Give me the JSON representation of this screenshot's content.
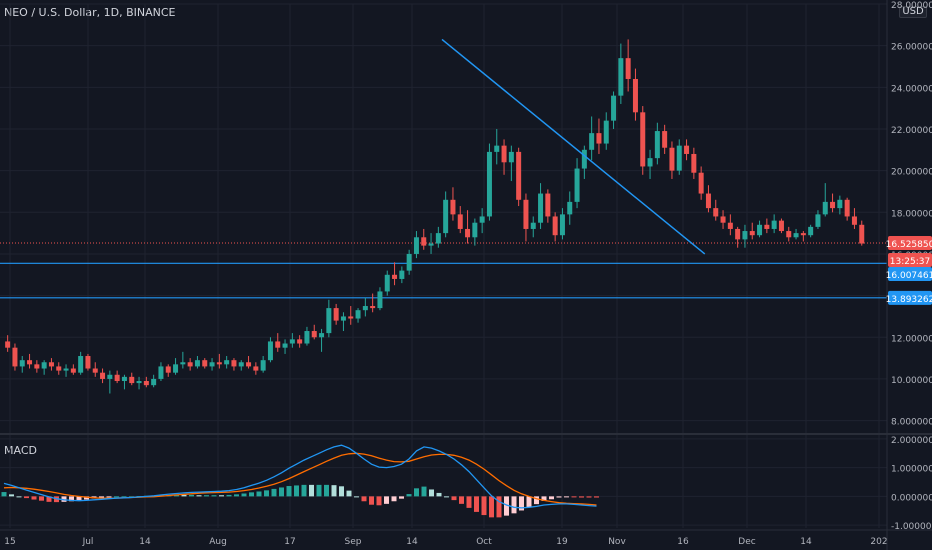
{
  "title": "NEO / U.S. Dollar, 1D, BINANCE",
  "currency_label": "USD",
  "indicator_label": "MACD",
  "colors": {
    "background": "#131722",
    "grid": "#1f2330",
    "up": "#26a69a",
    "down": "#ef5350",
    "trendline": "#2196f3",
    "support_line": "#2196f3",
    "macd_line": "#2196f3",
    "signal_line": "#ff6d00",
    "axis_text": "#b2b5be"
  },
  "chart_data": [
    {
      "type": "candlestick",
      "title": "NEO / U.S. Dollar, 1D, BINANCE",
      "y_axis": {
        "range": [
          7.5,
          28.0
        ],
        "ticks": [
          8.0,
          10.0,
          12.0,
          14.0,
          16.0,
          18.0,
          20.0,
          22.0,
          24.0,
          26.0,
          28.0
        ],
        "tick_labels": [
          "8.000000",
          "10.000000",
          "12.000000",
          "14.000000",
          "16.000000",
          "18.000000",
          "20.000000",
          "22.000000",
          "24.000000",
          "26.000000",
          "28.000000"
        ]
      },
      "x_axis": {
        "tick_labels": [
          "15",
          "Jul",
          "14",
          "Aug",
          "17",
          "Sep",
          "14",
          "Oct",
          "19",
          "Nov",
          "16",
          "Dec",
          "14",
          "202"
        ],
        "range_days": [
          0,
          197
        ]
      },
      "price_tags": [
        {
          "label": "16.525850",
          "value": 16.52585,
          "color": "#ef5350"
        },
        {
          "label": "13:25:37",
          "value": 16.3,
          "color": "#ef5350"
        },
        {
          "label": "16.007461",
          "value": 15.55,
          "color": "#2196f3"
        },
        {
          "label": "13.893262",
          "value": 13.893262,
          "color": "#2196f3"
        }
      ],
      "current_price_line": 16.52585,
      "horizontal_lines": [
        16.007461,
        13.893262
      ],
      "trendline": {
        "start": {
          "day": 60,
          "value": 26.3
        },
        "end": {
          "day": 96,
          "value": 16.0
        }
      },
      "candles": [
        [
          11.8,
          12.1,
          11.3,
          11.5
        ],
        [
          11.5,
          11.7,
          10.4,
          10.6
        ],
        [
          10.6,
          11.1,
          10.3,
          10.9
        ],
        [
          10.9,
          11.2,
          10.5,
          10.7
        ],
        [
          10.7,
          10.9,
          10.3,
          10.5
        ],
        [
          10.5,
          10.9,
          10.2,
          10.8
        ],
        [
          10.8,
          11.0,
          10.4,
          10.6
        ],
        [
          10.6,
          10.8,
          10.2,
          10.4
        ],
        [
          10.4,
          10.7,
          10.1,
          10.5
        ],
        [
          10.5,
          10.7,
          10.2,
          10.3
        ],
        [
          10.3,
          11.3,
          10.2,
          11.1
        ],
        [
          11.1,
          11.2,
          10.4,
          10.5
        ],
        [
          10.5,
          10.8,
          10.1,
          10.3
        ],
        [
          10.3,
          10.5,
          9.8,
          10.0
        ],
        [
          10.0,
          10.4,
          9.3,
          10.2
        ],
        [
          10.2,
          10.4,
          9.8,
          9.9
        ],
        [
          9.9,
          10.2,
          9.5,
          10.1
        ],
        [
          10.1,
          10.3,
          9.7,
          9.8
        ],
        [
          9.8,
          10.1,
          9.5,
          9.9
        ],
        [
          9.9,
          10.1,
          9.6,
          9.7
        ],
        [
          9.7,
          10.2,
          9.6,
          10.0
        ],
        [
          10.0,
          10.8,
          9.9,
          10.6
        ],
        [
          10.6,
          10.7,
          10.1,
          10.3
        ],
        [
          10.3,
          11.0,
          10.2,
          10.7
        ],
        [
          10.7,
          11.3,
          10.5,
          10.8
        ],
        [
          10.8,
          11.0,
          10.4,
          10.6
        ],
        [
          10.6,
          11.1,
          10.5,
          10.9
        ],
        [
          10.9,
          11.0,
          10.5,
          10.6
        ],
        [
          10.6,
          11.0,
          10.4,
          10.8
        ],
        [
          10.8,
          11.2,
          10.5,
          10.7
        ],
        [
          10.7,
          11.1,
          10.5,
          10.9
        ],
        [
          10.9,
          11.0,
          10.4,
          10.6
        ],
        [
          10.6,
          10.9,
          10.4,
          10.8
        ],
        [
          10.8,
          11.1,
          10.5,
          10.6
        ],
        [
          10.6,
          10.8,
          10.2,
          10.4
        ],
        [
          10.4,
          11.1,
          10.3,
          10.9
        ],
        [
          10.9,
          12.0,
          10.8,
          11.8
        ],
        [
          11.8,
          12.2,
          11.3,
          11.5
        ],
        [
          11.5,
          11.9,
          11.2,
          11.7
        ],
        [
          11.7,
          12.2,
          11.5,
          11.9
        ],
        [
          11.9,
          12.1,
          11.5,
          11.7
        ],
        [
          11.7,
          12.5,
          11.6,
          12.3
        ],
        [
          12.3,
          12.6,
          11.9,
          12.0
        ],
        [
          12.0,
          12.4,
          11.3,
          12.2
        ],
        [
          12.2,
          13.8,
          12.0,
          13.4
        ],
        [
          13.4,
          13.6,
          12.6,
          12.8
        ],
        [
          12.8,
          13.2,
          12.3,
          13.0
        ],
        [
          13.0,
          13.5,
          12.6,
          12.9
        ],
        [
          12.9,
          13.4,
          12.7,
          13.3
        ],
        [
          13.3,
          13.9,
          13.0,
          13.5
        ],
        [
          13.5,
          14.1,
          13.2,
          13.4
        ],
        [
          13.4,
          14.4,
          13.3,
          14.2
        ],
        [
          14.2,
          15.2,
          14.0,
          15.0
        ],
        [
          15.0,
          15.6,
          14.5,
          14.8
        ],
        [
          14.8,
          15.4,
          14.6,
          15.2
        ],
        [
          15.2,
          16.2,
          15.0,
          16.0
        ],
        [
          16.0,
          17.1,
          15.8,
          16.8
        ],
        [
          16.8,
          17.2,
          16.2,
          16.4
        ],
        [
          16.4,
          17.0,
          16.0,
          16.5
        ],
        [
          16.5,
          17.3,
          16.3,
          17.0
        ],
        [
          17.0,
          19.0,
          16.8,
          18.6
        ],
        [
          18.6,
          19.2,
          17.6,
          17.9
        ],
        [
          17.9,
          18.3,
          17.0,
          17.2
        ],
        [
          17.2,
          18.1,
          16.5,
          16.8
        ],
        [
          16.8,
          17.7,
          16.4,
          17.5
        ],
        [
          17.5,
          18.2,
          17.0,
          17.8
        ],
        [
          17.8,
          21.3,
          17.6,
          20.9
        ],
        [
          20.9,
          22.0,
          20.3,
          21.2
        ],
        [
          21.2,
          21.5,
          19.8,
          20.4
        ],
        [
          20.4,
          21.2,
          19.5,
          20.9
        ],
        [
          20.9,
          21.1,
          18.3,
          18.6
        ],
        [
          18.6,
          18.9,
          16.6,
          17.2
        ],
        [
          17.2,
          17.8,
          16.8,
          17.5
        ],
        [
          17.5,
          19.4,
          17.2,
          18.9
        ],
        [
          18.9,
          19.1,
          17.5,
          17.8
        ],
        [
          17.8,
          18.0,
          16.6,
          16.9
        ],
        [
          16.9,
          18.2,
          16.7,
          17.9
        ],
        [
          17.9,
          19.0,
          17.4,
          18.5
        ],
        [
          18.5,
          20.6,
          18.2,
          20.1
        ],
        [
          20.1,
          21.2,
          19.6,
          21.0
        ],
        [
          21.0,
          22.6,
          20.5,
          21.8
        ],
        [
          21.8,
          22.5,
          20.8,
          21.3
        ],
        [
          21.3,
          22.8,
          21.0,
          22.4
        ],
        [
          22.4,
          23.8,
          22.0,
          23.6
        ],
        [
          23.6,
          26.1,
          23.2,
          25.4
        ],
        [
          25.4,
          26.3,
          23.8,
          24.4
        ],
        [
          24.4,
          24.9,
          22.4,
          22.8
        ],
        [
          22.8,
          23.1,
          19.8,
          20.2
        ],
        [
          20.2,
          21.0,
          19.6,
          20.6
        ],
        [
          20.6,
          22.3,
          20.3,
          21.9
        ],
        [
          21.9,
          22.2,
          20.8,
          21.1
        ],
        [
          21.1,
          21.4,
          19.6,
          20.0
        ],
        [
          20.0,
          21.5,
          19.8,
          21.2
        ],
        [
          21.2,
          21.5,
          20.5,
          20.8
        ],
        [
          20.8,
          21.1,
          19.6,
          19.9
        ],
        [
          19.9,
          20.2,
          18.6,
          18.9
        ],
        [
          18.9,
          19.3,
          18.0,
          18.2
        ],
        [
          18.2,
          18.6,
          17.6,
          17.8
        ],
        [
          17.8,
          18.1,
          17.2,
          17.5
        ],
        [
          17.5,
          17.9,
          16.9,
          17.2
        ],
        [
          17.2,
          17.3,
          16.3,
          16.7
        ],
        [
          16.7,
          17.4,
          16.3,
          17.1
        ],
        [
          17.1,
          17.5,
          16.7,
          16.9
        ],
        [
          16.9,
          17.6,
          16.8,
          17.4
        ],
        [
          17.4,
          17.7,
          17.0,
          17.2
        ],
        [
          17.2,
          17.9,
          17.0,
          17.6
        ],
        [
          17.6,
          17.7,
          17.0,
          17.1
        ],
        [
          17.1,
          17.3,
          16.6,
          16.8
        ],
        [
          16.8,
          17.2,
          16.7,
          17.0
        ],
        [
          17.0,
          17.1,
          16.6,
          16.9
        ],
        [
          16.9,
          17.4,
          16.8,
          17.3
        ],
        [
          17.3,
          18.1,
          17.2,
          17.9
        ],
        [
          17.9,
          19.4,
          17.8,
          18.5
        ],
        [
          18.5,
          18.9,
          18.0,
          18.2
        ],
        [
          18.2,
          18.8,
          17.9,
          18.6
        ],
        [
          18.6,
          18.7,
          17.6,
          17.8
        ],
        [
          17.8,
          18.2,
          17.2,
          17.4
        ],
        [
          17.4,
          17.6,
          16.4,
          16.5
        ]
      ]
    },
    {
      "type": "line",
      "title": "MACD",
      "y_axis": {
        "range": [
          -1.1,
          2.1
        ],
        "ticks": [
          -1.0,
          0.0,
          1.0,
          2.0
        ],
        "tick_labels": [
          "-1.000000",
          "0.000000",
          "1.000000",
          "2.000000"
        ]
      },
      "series": [
        {
          "name": "",
          "values": [
            0.45,
            0.38,
            0.3,
            0.22,
            0.14,
            0.06,
            -0.02,
            -0.08,
            -0.12,
            -0.14,
            -0.15,
            -0.14,
            -0.12,
            -0.1,
            -0.08,
            -0.06,
            -0.05,
            -0.04,
            -0.02,
            0.0,
            0.02,
            0.05,
            0.08,
            0.1,
            0.12,
            0.14,
            0.15,
            0.16,
            0.17,
            0.18,
            0.2,
            0.24,
            0.3,
            0.38,
            0.46,
            0.56,
            0.68,
            0.82,
            0.98,
            1.12,
            1.26,
            1.38,
            1.5,
            1.62,
            1.72,
            1.78,
            1.68,
            1.5,
            1.3,
            1.12,
            1.02,
            1.0,
            1.04,
            1.12,
            1.3,
            1.58,
            1.72,
            1.68,
            1.58,
            1.46,
            1.3,
            1.1,
            0.86,
            0.58,
            0.3,
            0.02,
            -0.18,
            -0.3,
            -0.38,
            -0.4,
            -0.38,
            -0.35,
            -0.3,
            -0.28,
            -0.26,
            -0.26,
            -0.28,
            -0.3,
            -0.32,
            -0.34
          ]
        },
        {
          "name": "",
          "values": [
            0.3,
            0.31,
            0.3,
            0.28,
            0.25,
            0.21,
            0.17,
            0.12,
            0.07,
            0.03,
            0.0,
            -0.03,
            -0.05,
            -0.06,
            -0.06,
            -0.06,
            -0.05,
            -0.04,
            -0.03,
            -0.02,
            -0.01,
            0.01,
            0.03,
            0.05,
            0.07,
            0.09,
            0.11,
            0.12,
            0.13,
            0.14,
            0.15,
            0.17,
            0.2,
            0.24,
            0.29,
            0.35,
            0.42,
            0.51,
            0.62,
            0.74,
            0.86,
            0.98,
            1.1,
            1.22,
            1.33,
            1.43,
            1.48,
            1.5,
            1.47,
            1.41,
            1.33,
            1.26,
            1.21,
            1.2,
            1.22,
            1.3,
            1.38,
            1.44,
            1.46,
            1.46,
            1.43,
            1.36,
            1.26,
            1.12,
            0.95,
            0.75,
            0.55,
            0.37,
            0.21,
            0.09,
            0.0,
            -0.08,
            -0.14,
            -0.18,
            -0.22,
            -0.24,
            -0.25,
            -0.26,
            -0.28,
            -0.3
          ]
        }
      ]
    }
  ]
}
